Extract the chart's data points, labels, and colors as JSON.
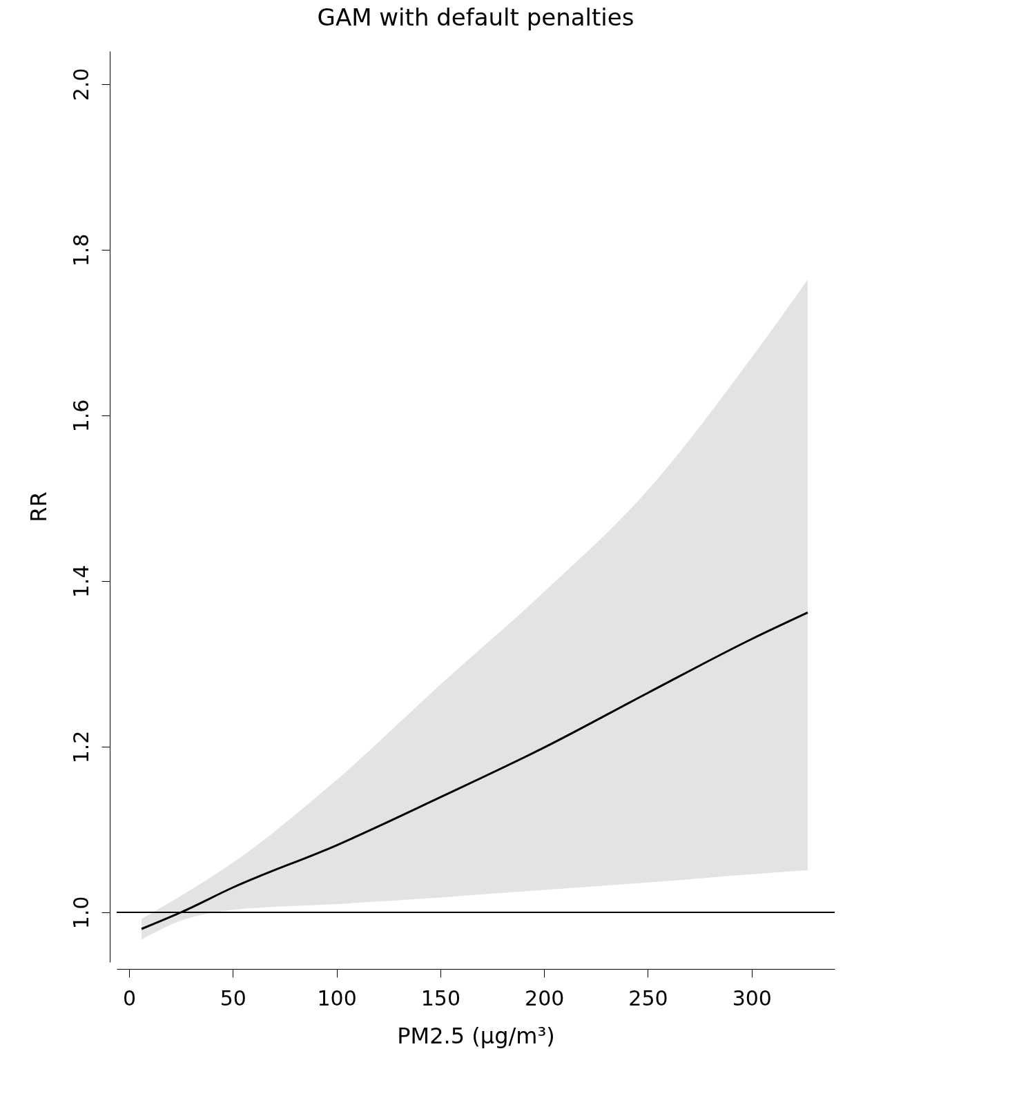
{
  "chart_data": {
    "type": "line",
    "title": "GAM with default penalties",
    "xlabel": "PM2.5 (μg/m³)",
    "ylabel": "RR",
    "x": [
      6,
      25,
      50,
      100,
      150,
      200,
      250,
      300,
      327
    ],
    "series": [
      {
        "color": "#000000",
        "values": [
          0.98,
          1.0,
          1.03,
          1.081,
          1.139,
          1.199,
          1.265,
          1.33,
          1.362
        ],
        "lower": [
          0.967,
          0.99,
          1.003,
          1.01,
          1.018,
          1.027,
          1.036,
          1.046,
          1.051
        ],
        "upper": [
          0.992,
          1.02,
          1.06,
          1.16,
          1.275,
          1.387,
          1.51,
          1.67,
          1.764
        ]
      }
    ],
    "xlim": [
      -6,
      340
    ],
    "ylim": [
      0.94,
      2.04
    ],
    "xticks": [
      0,
      50,
      100,
      150,
      200,
      250,
      300
    ],
    "yticks": [
      {
        "value": 1.0,
        "label": "1.0"
      },
      1.2,
      1.4,
      1.6,
      1.8,
      {
        "value": 2.0,
        "label": "2.0"
      }
    ],
    "ref_lines": [
      {
        "axis": "y",
        "value": 1.0,
        "color": "#000000"
      }
    ],
    "grid": false,
    "marker": "none",
    "line_style": "solid"
  }
}
